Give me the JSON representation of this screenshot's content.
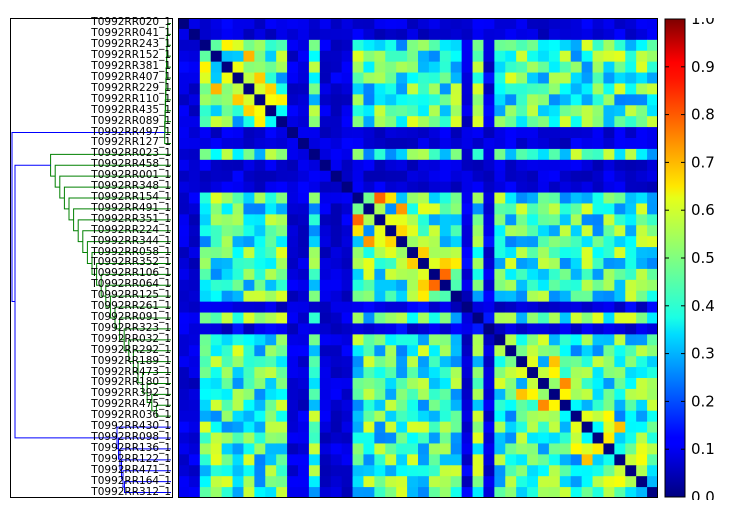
{
  "chart_data": {
    "type": "heatmap",
    "title": "",
    "xlabel": "",
    "ylabel": "",
    "row_labels": [
      "T0992RR020_1",
      "T0992RR041_1",
      "T0992RR243_1",
      "T0992RR152_1",
      "T0992RR381_1",
      "T0992RR407_1",
      "T0992RR229_1",
      "T0992RR110_1",
      "T0992RR435_1",
      "T0992RR089_1",
      "T0992RR497_1",
      "T0992RR127_1",
      "T0992RR023_1",
      "T0992RR458_1",
      "T0992RR001_1",
      "T0992RR348_1",
      "T0992RR154_1",
      "T0992RR491_1",
      "T0992RR351_1",
      "T0992RR224_1",
      "T0992RR344_1",
      "T0992RR058_1",
      "T0992RR352_1",
      "T0992RR106_1",
      "T0992RR064_1",
      "T0992RR125_1",
      "T0992RR261_1",
      "T0992RR091_1",
      "T0992RR323_1",
      "T0992RR032_1",
      "T0992RR292_1",
      "T0992RR189_1",
      "T0992RR473_1",
      "T0992RR180_1",
      "T0992RR392_1",
      "T0992RR475_1",
      "T0992RR036_1",
      "T0992RR430_1",
      "T0992RR098_1",
      "T0992RR136_1",
      "T0992RR122_1",
      "T0992RR471_1",
      "T0992RR164_1",
      "T0992RR312_1"
    ],
    "colorbar": {
      "range": [
        0.0,
        1.0
      ],
      "ticks": [
        "0.0",
        "0.1",
        "0.2",
        "0.3",
        "0.4",
        "0.5",
        "0.6",
        "0.7",
        "0.8",
        "0.9",
        "1.0"
      ],
      "colormap": "jet"
    },
    "dendrogram": {
      "colors": [
        "#008000",
        "#0000ff"
      ]
    }
  }
}
